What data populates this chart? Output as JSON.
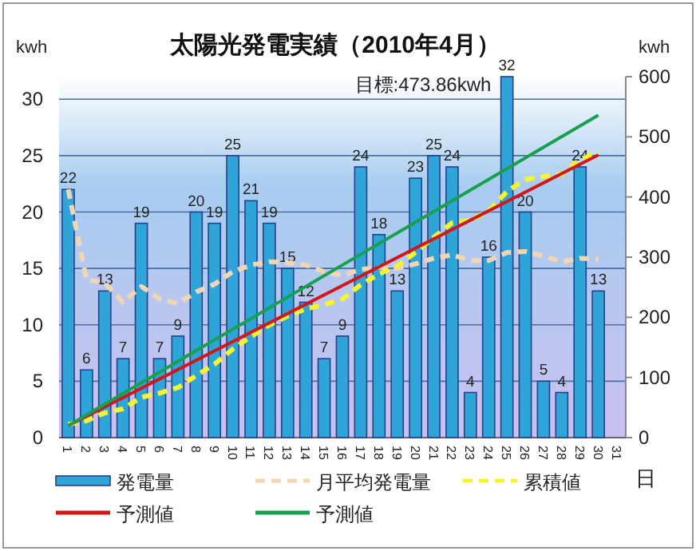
{
  "chart_data": {
    "type": "bar",
    "title": "太陽光発電実績（2010年4月）",
    "annotations": [
      "目標:473.86kwh"
    ],
    "ylabel": "kwh",
    "y2label": "kwh",
    "xlabel": "日",
    "categories": [
      "1",
      "2",
      "3",
      "4",
      "5",
      "6",
      "7",
      "8",
      "9",
      "10",
      "11",
      "12",
      "13",
      "14",
      "15",
      "16",
      "17",
      "18",
      "19",
      "20",
      "21",
      "22",
      "23",
      "24",
      "25",
      "26",
      "27",
      "28",
      "29",
      "30",
      "31"
    ],
    "ylim": [
      0,
      32
    ],
    "yticks": [
      0,
      5,
      10,
      15,
      20,
      25,
      30
    ],
    "y2lim": [
      0,
      600
    ],
    "y2ticks": [
      0,
      100,
      200,
      300,
      400,
      500,
      600
    ],
    "grid": "y",
    "legend": "bottom",
    "series": [
      {
        "name": "発電量",
        "color": "#2fa4d8",
        "values": [
          22,
          6,
          13,
          7,
          19,
          7,
          9,
          20,
          19,
          25,
          21,
          19,
          15,
          12,
          7,
          9,
          24,
          18,
          13,
          23,
          25,
          24,
          4,
          16,
          32,
          20,
          5,
          4,
          24,
          13,
          null
        ],
        "value_labels": [
          "22",
          "6",
          "13",
          "7",
          "19",
          "7",
          "9",
          "20",
          "19",
          "25",
          "21",
          "19",
          "15",
          "12",
          "7",
          "9",
          "24",
          "18",
          "13",
          "23",
          "25",
          "24",
          "4",
          "16",
          "32",
          "20",
          "5",
          "4",
          "24",
          "13",
          null
        ]
      },
      {
        "name": "月平均発電量",
        "type": "line",
        "line_style": "dashed",
        "color": "#f2d6b4",
        "values": [
          22,
          14,
          13.7,
          12,
          13.4,
          12.3,
          11.9,
          12.9,
          13.6,
          14.7,
          15.3,
          15.6,
          15.5,
          15.3,
          14.7,
          14.4,
          14.9,
          15.1,
          15,
          15.4,
          15.9,
          16.2,
          15.7,
          15.7,
          16.4,
          16.5,
          16.1,
          15.6,
          15.9,
          15.8,
          null
        ]
      },
      {
        "name": "累積値",
        "type": "line",
        "line_style": "dashed",
        "axis": "y2",
        "color": "#f4f430",
        "values": [
          22,
          28,
          41,
          48,
          67,
          74,
          83,
          103,
          122,
          147,
          168,
          187,
          202,
          214,
          221,
          230,
          254,
          272,
          285,
          308,
          333,
          357,
          361,
          377,
          409,
          429,
          434,
          438,
          462,
          475,
          null
        ]
      },
      {
        "name": "予測値",
        "type": "line",
        "line_style": "solid",
        "axis": "y2",
        "color": "#d01818",
        "x": [
          "1",
          "30"
        ],
        "values": [
          20,
          470
        ]
      },
      {
        "name": "予測値",
        "type": "line",
        "line_style": "solid",
        "axis": "y2",
        "color": "#18a050",
        "x": [
          "1",
          "30"
        ],
        "values": [
          20,
          536
        ]
      }
    ]
  }
}
